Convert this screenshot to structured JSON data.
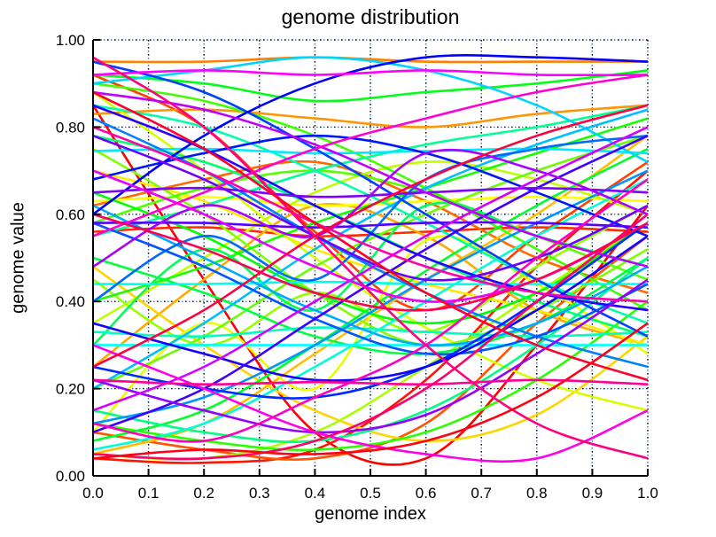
{
  "figure": {
    "title": "genome distribution",
    "background_color": "#ffffff",
    "text_color": "#000000"
  },
  "chart_data": {
    "type": "line",
    "title": "genome distribution",
    "xlabel": "genome index",
    "ylabel": "genome value",
    "xlim": [
      0.0,
      1.0
    ],
    "ylim": [
      0.0,
      1.0
    ],
    "x_ticks": {
      "values": [
        0.0,
        0.1,
        0.2,
        0.3,
        0.4,
        0.5,
        0.6,
        0.7,
        0.8,
        0.9,
        1.0
      ],
      "labels": [
        "0.0",
        "0.1",
        "0.2",
        "0.3",
        "0.4",
        "0.5",
        "0.6",
        "0.7",
        "0.8",
        "0.9",
        "1.0"
      ]
    },
    "y_ticks": {
      "values": [
        0.0,
        0.2,
        0.4,
        0.6,
        0.8,
        1.0
      ],
      "labels": [
        "0.00",
        "0.20",
        "0.40",
        "0.60",
        "0.80",
        "1.00"
      ]
    },
    "grid": {
      "show": true,
      "style": "dotted",
      "x_values": [
        0.1,
        0.2,
        0.3,
        0.4,
        0.5,
        0.6,
        0.7,
        0.8,
        0.9,
        1.0
      ],
      "y_values": [
        0.2,
        0.4,
        0.6,
        0.8,
        1.0
      ],
      "dot_colors": [
        "#000000",
        "#3377ff"
      ]
    },
    "legend": "none",
    "axis_color": "#000000",
    "line_width": 2.6,
    "x_control_points": [
      0.0,
      0.2,
      0.4,
      0.6,
      0.8,
      1.0
    ],
    "series": [
      {
        "color": "#FF0000",
        "y": [
          0.85,
          0.45,
          0.1,
          0.04,
          0.3,
          0.62
        ]
      },
      {
        "color": "#FF1500",
        "y": [
          0.04,
          0.03,
          0.06,
          0.22,
          0.48,
          0.7
        ]
      },
      {
        "color": "#FF2A00",
        "y": [
          0.56,
          0.57,
          0.55,
          0.56,
          0.57,
          0.56
        ]
      },
      {
        "color": "#FF4000",
        "y": [
          0.92,
          0.8,
          0.56,
          0.38,
          0.55,
          0.72
        ]
      },
      {
        "color": "#FF5500",
        "y": [
          0.1,
          0.06,
          0.04,
          0.12,
          0.35,
          0.55
        ]
      },
      {
        "color": "#FF6A00",
        "y": [
          0.62,
          0.68,
          0.72,
          0.63,
          0.5,
          0.42
        ]
      },
      {
        "color": "#FF8000",
        "y": [
          0.95,
          0.95,
          0.96,
          0.95,
          0.95,
          0.95
        ]
      },
      {
        "color": "#FF9500",
        "y": [
          0.83,
          0.84,
          0.82,
          0.8,
          0.83,
          0.85
        ]
      },
      {
        "color": "#FFAA00",
        "y": [
          0.25,
          0.45,
          0.62,
          0.55,
          0.38,
          0.3
        ]
      },
      {
        "color": "#FFBF00",
        "y": [
          0.05,
          0.12,
          0.28,
          0.45,
          0.6,
          0.78
        ]
      },
      {
        "color": "#FFD500",
        "y": [
          0.48,
          0.3,
          0.15,
          0.08,
          0.14,
          0.32
        ]
      },
      {
        "color": "#FFEA00",
        "y": [
          0.7,
          0.63,
          0.52,
          0.44,
          0.38,
          0.3
        ]
      },
      {
        "color": "#FFFF00",
        "y": [
          0.63,
          0.64,
          0.62,
          0.63,
          0.64,
          0.63
        ]
      },
      {
        "color": "#EAFF00",
        "y": [
          0.1,
          0.35,
          0.2,
          0.54,
          0.44,
          0.28
        ]
      },
      {
        "color": "#D5FF00",
        "y": [
          0.88,
          0.7,
          0.5,
          0.34,
          0.22,
          0.15
        ]
      },
      {
        "color": "#BFFF00",
        "y": [
          0.35,
          0.5,
          0.65,
          0.72,
          0.68,
          0.6
        ]
      },
      {
        "color": "#AAFF00",
        "y": [
          0.05,
          0.04,
          0.1,
          0.25,
          0.42,
          0.58
        ]
      },
      {
        "color": "#95FF00",
        "y": [
          0.45,
          0.3,
          0.42,
          0.33,
          0.48,
          0.62
        ]
      },
      {
        "color": "#80FF00",
        "y": [
          0.75,
          0.6,
          0.42,
          0.3,
          0.38,
          0.52
        ]
      },
      {
        "color": "#6AFF00",
        "y": [
          0.2,
          0.32,
          0.48,
          0.6,
          0.7,
          0.78
        ]
      },
      {
        "color": "#55FF00",
        "y": [
          0.58,
          0.66,
          0.7,
          0.65,
          0.55,
          0.45
        ]
      },
      {
        "color": "#40FF00",
        "y": [
          0.9,
          0.86,
          0.78,
          0.66,
          0.52,
          0.38
        ]
      },
      {
        "color": "#2AFF00",
        "y": [
          0.12,
          0.08,
          0.06,
          0.1,
          0.22,
          0.4
        ]
      },
      {
        "color": "#15FF00",
        "y": [
          0.4,
          0.48,
          0.58,
          0.66,
          0.74,
          0.82
        ]
      },
      {
        "color": "#00FF00",
        "y": [
          0.65,
          0.55,
          0.42,
          0.35,
          0.42,
          0.58
        ]
      },
      {
        "color": "#00FF15",
        "y": [
          0.92,
          0.9,
          0.86,
          0.88,
          0.9,
          0.93
        ]
      },
      {
        "color": "#00FF2A",
        "y": [
          0.08,
          0.15,
          0.3,
          0.47,
          0.62,
          0.75
        ]
      },
      {
        "color": "#00FF40",
        "y": [
          0.5,
          0.42,
          0.32,
          0.28,
          0.35,
          0.5
        ]
      },
      {
        "color": "#00FF55",
        "y": [
          0.3,
          0.52,
          0.38,
          0.62,
          0.55,
          0.48
        ]
      },
      {
        "color": "#00FF6A",
        "y": [
          0.78,
          0.72,
          0.62,
          0.5,
          0.4,
          0.32
        ]
      },
      {
        "color": "#00FF80",
        "y": [
          0.15,
          0.1,
          0.08,
          0.15,
          0.3,
          0.5
        ]
      },
      {
        "color": "#00FF95",
        "y": [
          0.55,
          0.62,
          0.7,
          0.76,
          0.8,
          0.85
        ]
      },
      {
        "color": "#00FFAA",
        "y": [
          0.85,
          0.8,
          0.7,
          0.58,
          0.45,
          0.35
        ]
      },
      {
        "color": "#00FFBF",
        "y": [
          0.33,
          0.32,
          0.34,
          0.33,
          0.32,
          0.33
        ]
      },
      {
        "color": "#00FFD5",
        "y": [
          0.06,
          0.12,
          0.25,
          0.4,
          0.55,
          0.68
        ]
      },
      {
        "color": "#00FFEA",
        "y": [
          0.44,
          0.44,
          0.445,
          0.44,
          0.44,
          0.44
        ]
      },
      {
        "color": "#00FFFF",
        "y": [
          0.3,
          0.3,
          0.3,
          0.3,
          0.3,
          0.3
        ]
      },
      {
        "color": "#00EAFF",
        "y": [
          0.745,
          0.75,
          0.74,
          0.745,
          0.75,
          0.74
        ]
      },
      {
        "color": "#00D5FF",
        "y": [
          0.9,
          0.93,
          0.96,
          0.93,
          0.85,
          0.72
        ]
      },
      {
        "color": "#00BFFF",
        "y": [
          0.2,
          0.35,
          0.52,
          0.66,
          0.76,
          0.84
        ]
      },
      {
        "color": "#00AAFF",
        "y": [
          0.62,
          0.5,
          0.38,
          0.3,
          0.35,
          0.48
        ]
      },
      {
        "color": "#0095FF",
        "y": [
          0.12,
          0.18,
          0.3,
          0.45,
          0.58,
          0.7
        ]
      },
      {
        "color": "#0080FF",
        "y": [
          0.82,
          0.7,
          0.55,
          0.42,
          0.32,
          0.25
        ]
      },
      {
        "color": "#006AFF",
        "y": [
          0.4,
          0.55,
          0.45,
          0.68,
          0.75,
          0.78
        ]
      },
      {
        "color": "#0055FF",
        "y": [
          0.58,
          0.48,
          0.36,
          0.28,
          0.32,
          0.44
        ]
      },
      {
        "color": "#0040FF",
        "y": [
          0.95,
          0.88,
          0.75,
          0.6,
          0.45,
          0.32
        ]
      },
      {
        "color": "#002AFF",
        "y": [
          0.25,
          0.2,
          0.18,
          0.25,
          0.4,
          0.58
        ]
      },
      {
        "color": "#0015FF",
        "y": [
          0.68,
          0.74,
          0.78,
          0.74,
          0.65,
          0.55
        ]
      },
      {
        "color": "#0000FF",
        "y": [
          0.6,
          0.78,
          0.9,
          0.96,
          0.96,
          0.95
        ]
      },
      {
        "color": "#1500FF",
        "y": [
          0.35,
          0.28,
          0.22,
          0.25,
          0.38,
          0.55
        ]
      },
      {
        "color": "#2A00FF",
        "y": [
          0.85,
          0.75,
          0.62,
          0.5,
          0.42,
          0.38
        ]
      },
      {
        "color": "#4000FF",
        "y": [
          0.1,
          0.2,
          0.36,
          0.52,
          0.66,
          0.78
        ]
      },
      {
        "color": "#5500FF",
        "y": [
          0.58,
          0.58,
          0.57,
          0.58,
          0.58,
          0.57
        ]
      },
      {
        "color": "#6A00FF",
        "y": [
          0.78,
          0.68,
          0.55,
          0.45,
          0.5,
          0.62
        ]
      },
      {
        "color": "#8000FF",
        "y": [
          0.65,
          0.66,
          0.64,
          0.65,
          0.66,
          0.65
        ]
      },
      {
        "color": "#9500FF",
        "y": [
          0.22,
          0.15,
          0.1,
          0.14,
          0.28,
          0.45
        ]
      },
      {
        "color": "#AA00FF",
        "y": [
          0.48,
          0.62,
          0.55,
          0.74,
          0.7,
          0.6
        ]
      },
      {
        "color": "#BF00FF",
        "y": [
          0.88,
          0.84,
          0.76,
          0.65,
          0.55,
          0.48
        ]
      },
      {
        "color": "#D500FF",
        "y": [
          0.15,
          0.25,
          0.4,
          0.55,
          0.68,
          0.8
        ]
      },
      {
        "color": "#EA00FF",
        "y": [
          0.7,
          0.6,
          0.48,
          0.4,
          0.45,
          0.58
        ]
      },
      {
        "color": "#FF00FF",
        "y": [
          0.92,
          0.93,
          0.92,
          0.93,
          0.92,
          0.92
        ]
      },
      {
        "color": "#FF00EA",
        "y": [
          0.3,
          0.2,
          0.1,
          0.05,
          0.04,
          0.15
        ]
      },
      {
        "color": "#FF00D5",
        "y": [
          0.55,
          0.65,
          0.75,
          0.82,
          0.88,
          0.92
        ]
      },
      {
        "color": "#FF00BF",
        "y": [
          0.12,
          0.08,
          0.18,
          0.3,
          0.5,
          0.68
        ]
      },
      {
        "color": "#FF00AA",
        "y": [
          0.8,
          0.7,
          0.58,
          0.48,
          0.42,
          0.4
        ]
      },
      {
        "color": "#FF0095",
        "y": [
          0.22,
          0.21,
          0.215,
          0.21,
          0.22,
          0.21
        ]
      },
      {
        "color": "#FF0080",
        "y": [
          0.96,
          0.8,
          0.55,
          0.3,
          0.12,
          0.04
        ]
      },
      {
        "color": "#FF006A",
        "y": [
          0.05,
          0.04,
          0.08,
          0.2,
          0.4,
          0.6
        ]
      },
      {
        "color": "#FF0055",
        "y": [
          0.6,
          0.52,
          0.42,
          0.38,
          0.45,
          0.58
        ]
      },
      {
        "color": "#FF0040",
        "y": [
          0.25,
          0.38,
          0.55,
          0.68,
          0.78,
          0.85
        ]
      },
      {
        "color": "#FF002A",
        "y": [
          0.88,
          0.75,
          0.58,
          0.42,
          0.3,
          0.22
        ]
      },
      {
        "color": "#FF0015",
        "y": [
          0.04,
          0.06,
          0.05,
          0.08,
          0.18,
          0.35
        ]
      }
    ]
  }
}
